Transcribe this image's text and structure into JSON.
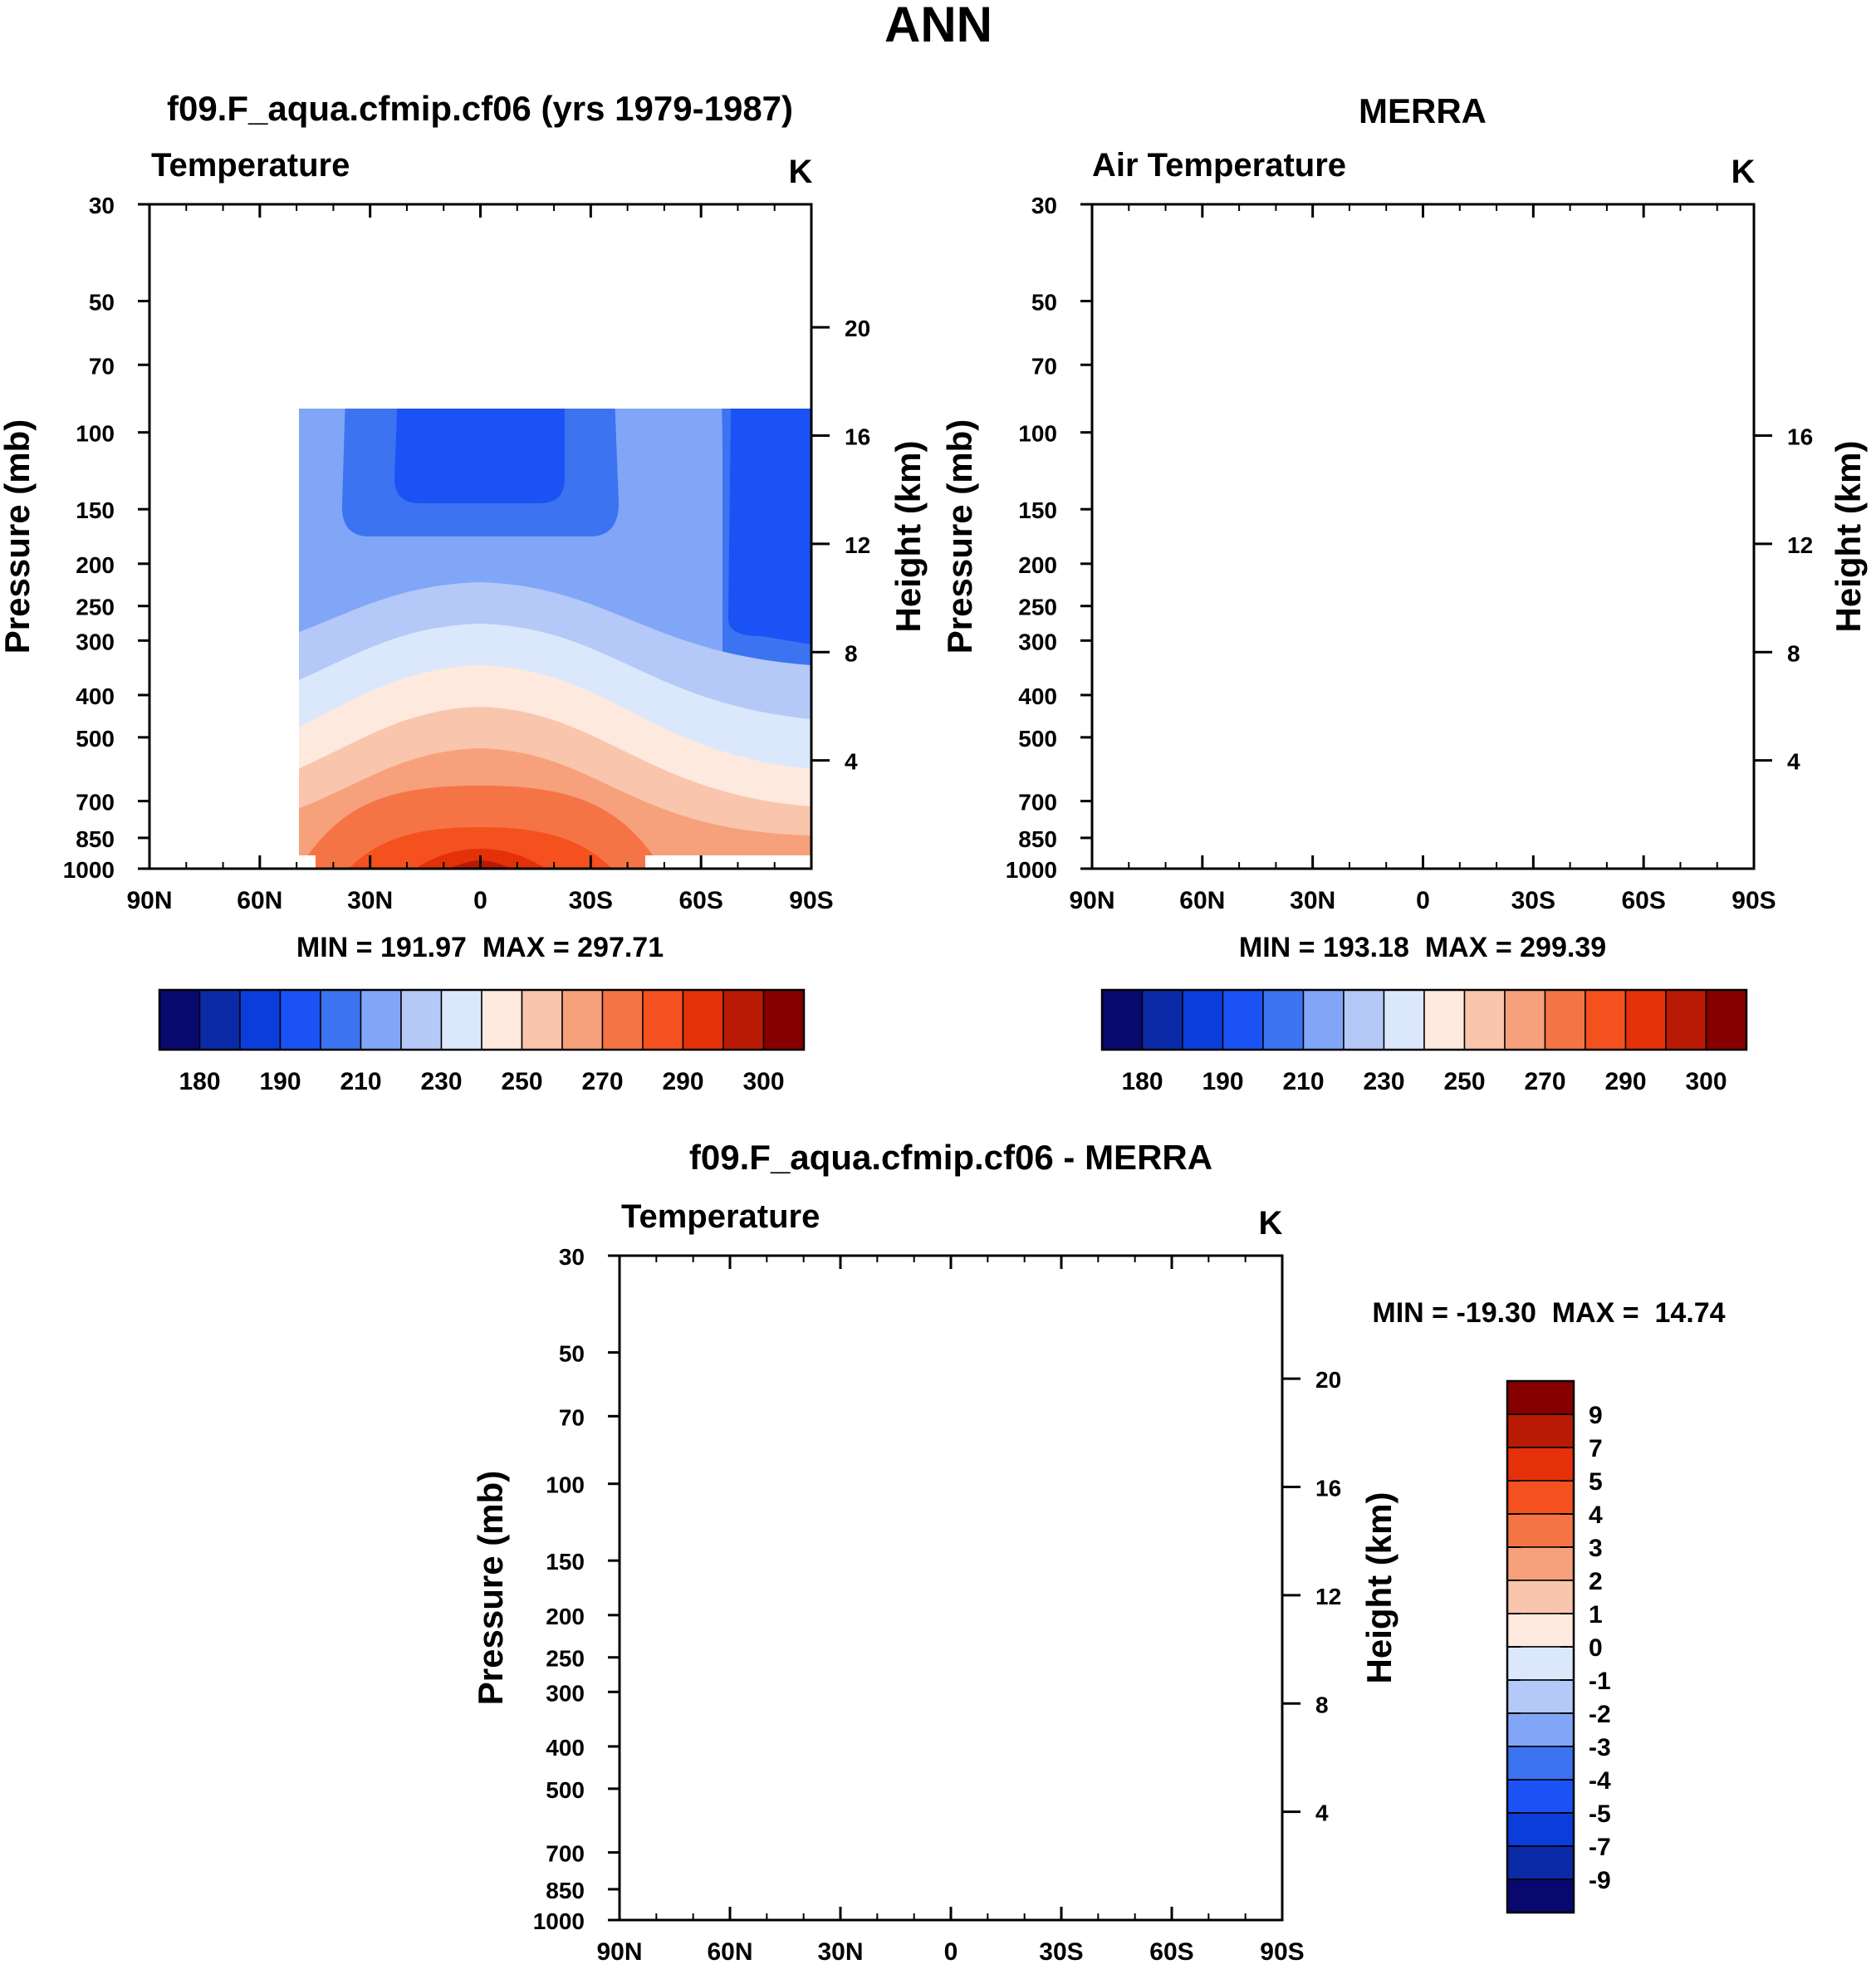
{
  "page": {
    "title": "ANN"
  },
  "colors": {
    "abs_palette": [
      "#08086e",
      "#0b2aa8",
      "#0b3ddb",
      "#1a52f5",
      "#3c73f0",
      "#82a6f7",
      "#b4c9f8",
      "#dbe8fb",
      "#fde9dd",
      "#f9c5ac",
      "#f7a07c",
      "#f57445",
      "#f4511e",
      "#e4310a",
      "#b91a05",
      "#870000"
    ],
    "diff_palette": [
      "#08086e",
      "#0b2aa8",
      "#0b3ddb",
      "#1a52f5",
      "#3c73f0",
      "#82a6f7",
      "#b4c9f8",
      "#dbe8fb",
      "#fde9dd",
      "#f9c5ac",
      "#f7a07c",
      "#f57445",
      "#f4511e",
      "#e4310a",
      "#b91a05",
      "#870000"
    ]
  },
  "chart_data": [
    {
      "id": "model",
      "type": "heatmap",
      "title": "f09.F_aqua.cfmip.cf06 (yrs 1979-1987)",
      "left_label": "Temperature",
      "units": "K",
      "ylabel": "Pressure (mb)",
      "ylabel_right": "Height (km)",
      "x_ticks": [
        "90N",
        "60N",
        "30N",
        "0",
        "30S",
        "60S",
        "90S"
      ],
      "y_ticks": [
        "30",
        "50",
        "70",
        "100",
        "150",
        "200",
        "250",
        "300",
        "400",
        "500",
        "700",
        "850",
        "1000"
      ],
      "y_right_ticks": [
        "20",
        "16",
        "12",
        "8",
        "4"
      ],
      "ylim": [
        1000,
        30
      ],
      "stats": "MIN = 191.97  MAX = 297.71",
      "colorbar_labels": [
        "180",
        "190",
        "210",
        "230",
        "250",
        "270",
        "290",
        "300"
      ],
      "colorbar_orientation": "horizontal"
    },
    {
      "id": "obs",
      "type": "heatmap",
      "title": "MERRA",
      "left_label": "Air Temperature",
      "units": "K",
      "ylabel": "Pressure (mb)",
      "ylabel_right": "Height (km)",
      "x_ticks": [
        "90N",
        "60N",
        "30N",
        "0",
        "30S",
        "60S",
        "90S"
      ],
      "y_ticks": [
        "30",
        "50",
        "70",
        "100",
        "150",
        "200",
        "250",
        "300",
        "400",
        "500",
        "700",
        "850",
        "1000"
      ],
      "y_right_ticks": [
        "16",
        "12",
        "8",
        "4"
      ],
      "ylim": [
        1000,
        30
      ],
      "stats": "MIN = 193.18  MAX = 299.39",
      "colorbar_labels": [
        "180",
        "190",
        "210",
        "230",
        "250",
        "270",
        "290",
        "300"
      ],
      "colorbar_orientation": "horizontal"
    },
    {
      "id": "diff",
      "type": "heatmap",
      "title": "f09.F_aqua.cfmip.cf06 - MERRA",
      "left_label": "Temperature",
      "units": "K",
      "ylabel": "Pressure (mb)",
      "ylabel_right": "Height (km)",
      "x_ticks": [
        "90N",
        "60N",
        "30N",
        "0",
        "30S",
        "60S",
        "90S"
      ],
      "y_ticks": [
        "30",
        "50",
        "70",
        "100",
        "150",
        "200",
        "250",
        "300",
        "400",
        "500",
        "700",
        "850",
        "1000"
      ],
      "y_right_ticks": [
        "20",
        "16",
        "12",
        "8",
        "4"
      ],
      "ylim": [
        1000,
        30
      ],
      "stats": "MIN = -19.30  MAX =  14.74",
      "colorbar_labels": [
        "9",
        "7",
        "5",
        "4",
        "3",
        "2",
        "1",
        "0",
        "-1",
        "-2",
        "-3",
        "-4",
        "-5",
        "-7",
        "-9"
      ],
      "colorbar_orientation": "vertical"
    }
  ]
}
